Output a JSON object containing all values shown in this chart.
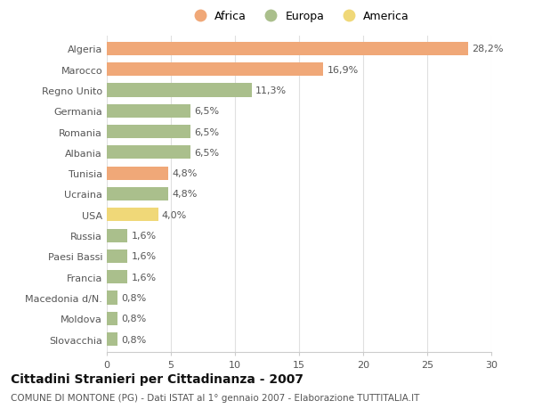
{
  "categories": [
    "Algeria",
    "Marocco",
    "Regno Unito",
    "Germania",
    "Romania",
    "Albania",
    "Tunisia",
    "Ucraina",
    "USA",
    "Russia",
    "Paesi Bassi",
    "Francia",
    "Macedonia d/N.",
    "Moldova",
    "Slovacchia"
  ],
  "values": [
    28.2,
    16.9,
    11.3,
    6.5,
    6.5,
    6.5,
    4.8,
    4.8,
    4.0,
    1.6,
    1.6,
    1.6,
    0.8,
    0.8,
    0.8
  ],
  "labels": [
    "28,2%",
    "16,9%",
    "11,3%",
    "6,5%",
    "6,5%",
    "6,5%",
    "4,8%",
    "4,8%",
    "4,0%",
    "1,6%",
    "1,6%",
    "1,6%",
    "0,8%",
    "0,8%",
    "0,8%"
  ],
  "continents": [
    "Africa",
    "Africa",
    "Europa",
    "Europa",
    "Europa",
    "Europa",
    "Africa",
    "Europa",
    "America",
    "Europa",
    "Europa",
    "Europa",
    "Europa",
    "Europa",
    "Europa"
  ],
  "colors": {
    "Africa": "#F0A878",
    "Europa": "#AABF8C",
    "America": "#F0D878"
  },
  "legend": [
    "Africa",
    "Europa",
    "America"
  ],
  "title": "Cittadini Stranieri per Cittadinanza - 2007",
  "subtitle": "COMUNE DI MONTONE (PG) - Dati ISTAT al 1° gennaio 2007 - Elaborazione TUTTITALIA.IT",
  "xlim": [
    0,
    30
  ],
  "xticks": [
    0,
    5,
    10,
    15,
    20,
    25,
    30
  ],
  "background_color": "#ffffff",
  "grid_color": "#e0e0e0",
  "bar_height": 0.65,
  "label_fontsize": 8,
  "tick_fontsize": 8,
  "title_fontsize": 10,
  "subtitle_fontsize": 7.5
}
